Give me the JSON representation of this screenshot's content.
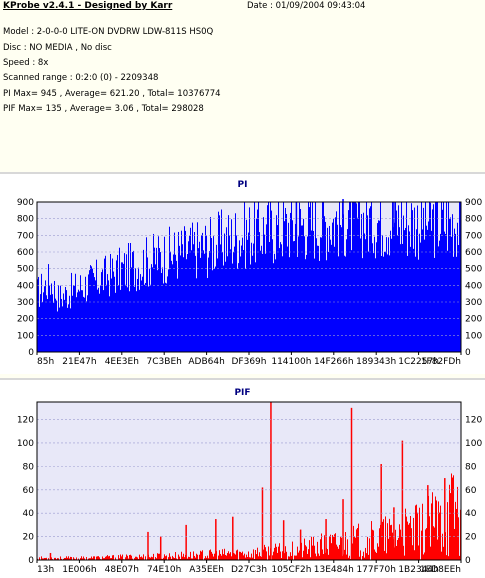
{
  "header": {
    "title": "KProbe v2.4.1 - Designed by Karr",
    "date": "Date : 01/09/2004 09:43:04",
    "model": "Model : 2-0-0-0 LITE-ON DVDRW LDW-811S   HS0Q",
    "disc": "Disc : NO MEDIA , No disc",
    "speed": "Speed : 8x",
    "range": "Scanned range : 0:2:0 (0) - 2209348",
    "pi_stats": "PI Max= 945 , Average= 621.20 , Total= 10376774",
    "pif_stats": "PIF Max= 135 , Average= 3.06 , Total= 298028"
  },
  "colors": {
    "pi": "#0000ff",
    "pif": "#ff0000",
    "plot_bg": "#e8e8f8",
    "grid": "#9a9ad0"
  },
  "chart_data": [
    {
      "type": "bar",
      "title": "PI",
      "ylim": [
        0,
        900
      ],
      "y_ticks": [
        "0",
        "100",
        "200",
        "300",
        "400",
        "500",
        "600",
        "700",
        "800",
        "900"
      ],
      "x_ticks": [
        "85h",
        "21E47h",
        "4EE3Eh",
        "7C3BEh",
        "ADB64h",
        "DF369h",
        "114100h",
        "14F266h",
        "189343h",
        "1C2257h",
        "1F82FDh"
      ],
      "envelope": {
        "x": [
          0,
          0.03,
          0.05,
          0.1,
          0.2,
          0.3,
          0.4,
          0.5,
          0.55,
          0.6,
          0.7,
          0.8,
          0.9,
          1.0
        ],
        "y": [
          380,
          460,
          350,
          420,
          530,
          620,
          680,
          770,
          790,
          820,
          850,
          860,
          840,
          850
        ]
      },
      "spikes": [
        {
          "x": 0.61,
          "y": 900
        },
        {
          "x": 0.72,
          "y": 945
        },
        {
          "x": 0.84,
          "y": 900
        }
      ],
      "grid": true
    },
    {
      "type": "bar",
      "title": "PIF",
      "ylim": [
        0,
        135
      ],
      "y_ticks": [
        "0",
        "20",
        "40",
        "60",
        "80",
        "100",
        "120"
      ],
      "x_ticks": [
        "13h",
        "1E006h",
        "48E07h",
        "74E10h",
        "A35EEh",
        "D27C3h",
        "105CF2h",
        "13E484h",
        "177F70h",
        "1B2344h",
        "1ED8EEh"
      ],
      "envelope": {
        "x": [
          0,
          0.1,
          0.3,
          0.5,
          0.6,
          0.7,
          0.8,
          0.9,
          0.95,
          1.0
        ],
        "y": [
          2,
          2,
          4,
          7,
          10,
          16,
          22,
          30,
          40,
          60
        ]
      },
      "spikes": [
        {
          "x": 0.03,
          "y": 6
        },
        {
          "x": 0.26,
          "y": 24
        },
        {
          "x": 0.29,
          "y": 20
        },
        {
          "x": 0.35,
          "y": 30
        },
        {
          "x": 0.42,
          "y": 35
        },
        {
          "x": 0.46,
          "y": 37
        },
        {
          "x": 0.53,
          "y": 62
        },
        {
          "x": 0.55,
          "y": 135
        },
        {
          "x": 0.58,
          "y": 34
        },
        {
          "x": 0.62,
          "y": 26
        },
        {
          "x": 0.68,
          "y": 35
        },
        {
          "x": 0.72,
          "y": 52
        },
        {
          "x": 0.74,
          "y": 130
        },
        {
          "x": 0.81,
          "y": 82
        },
        {
          "x": 0.84,
          "y": 45
        },
        {
          "x": 0.86,
          "y": 102
        },
        {
          "x": 0.92,
          "y": 64
        },
        {
          "x": 0.96,
          "y": 70
        }
      ],
      "grid": true
    }
  ]
}
